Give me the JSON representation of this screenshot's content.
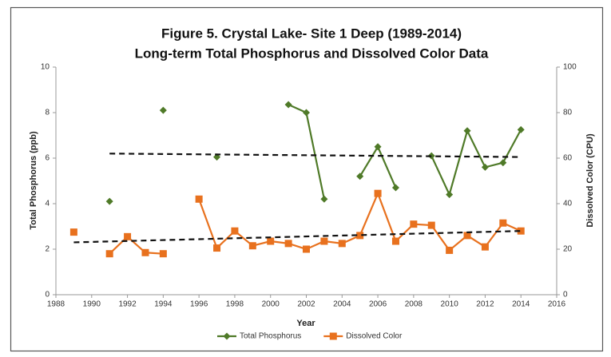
{
  "chart_data": {
    "type": "line",
    "title": [
      "Figure 5. Crystal Lake- Site 1 Deep (1989-2014)",
      "Long-term Total Phosphorus and Dissolved Color Data"
    ],
    "xlabel": "Year",
    "ylabel": "Total Phosphorus (ppb)",
    "y2label": "Dissolved Color (CPU)",
    "x": [
      1989,
      1990,
      1991,
      1992,
      1993,
      1994,
      1995,
      1996,
      1997,
      1998,
      1999,
      2000,
      2001,
      2002,
      2003,
      2004,
      2005,
      2006,
      2007,
      2008,
      2009,
      2010,
      2011,
      2012,
      2013,
      2014
    ],
    "series": [
      {
        "name": "Total Phosphorus",
        "color": "#4f7a28",
        "marker": "diamond",
        "axis": "y",
        "values": [
          null,
          null,
          4.1,
          null,
          null,
          8.1,
          null,
          null,
          6.05,
          null,
          null,
          null,
          8.35,
          8.0,
          4.2,
          null,
          5.2,
          6.5,
          4.7,
          null,
          6.1,
          4.4,
          7.2,
          5.6,
          5.8,
          7.25
        ]
      },
      {
        "name": "Dissolved Color",
        "color": "#e8711e",
        "marker": "square",
        "axis": "y2",
        "values": [
          27.5,
          null,
          18,
          25.5,
          18.5,
          18,
          null,
          42,
          20.5,
          28,
          21.5,
          23.5,
          22.5,
          20,
          23.5,
          22.5,
          26,
          44.5,
          23.5,
          31,
          30.5,
          19.5,
          26,
          21,
          31.5,
          28
        ]
      }
    ],
    "trendlines": [
      {
        "axis": "y",
        "x": [
          1991,
          2014
        ],
        "values": [
          6.2,
          6.05
        ]
      },
      {
        "axis": "y2",
        "x": [
          1989,
          2014
        ],
        "values": [
          23,
          28
        ]
      }
    ],
    "xlim": [
      1988,
      2016
    ],
    "xticks": [
      1988,
      1990,
      1992,
      1994,
      1996,
      1998,
      2000,
      2002,
      2004,
      2006,
      2008,
      2010,
      2012,
      2014,
      2016
    ],
    "ylim": [
      0,
      10
    ],
    "yticks": [
      0,
      2,
      4,
      6,
      8,
      10
    ],
    "y2lim": [
      0,
      100
    ],
    "y2ticks": [
      0,
      20,
      40,
      60,
      80,
      100
    ],
    "legend": "bottom",
    "grid": false
  }
}
